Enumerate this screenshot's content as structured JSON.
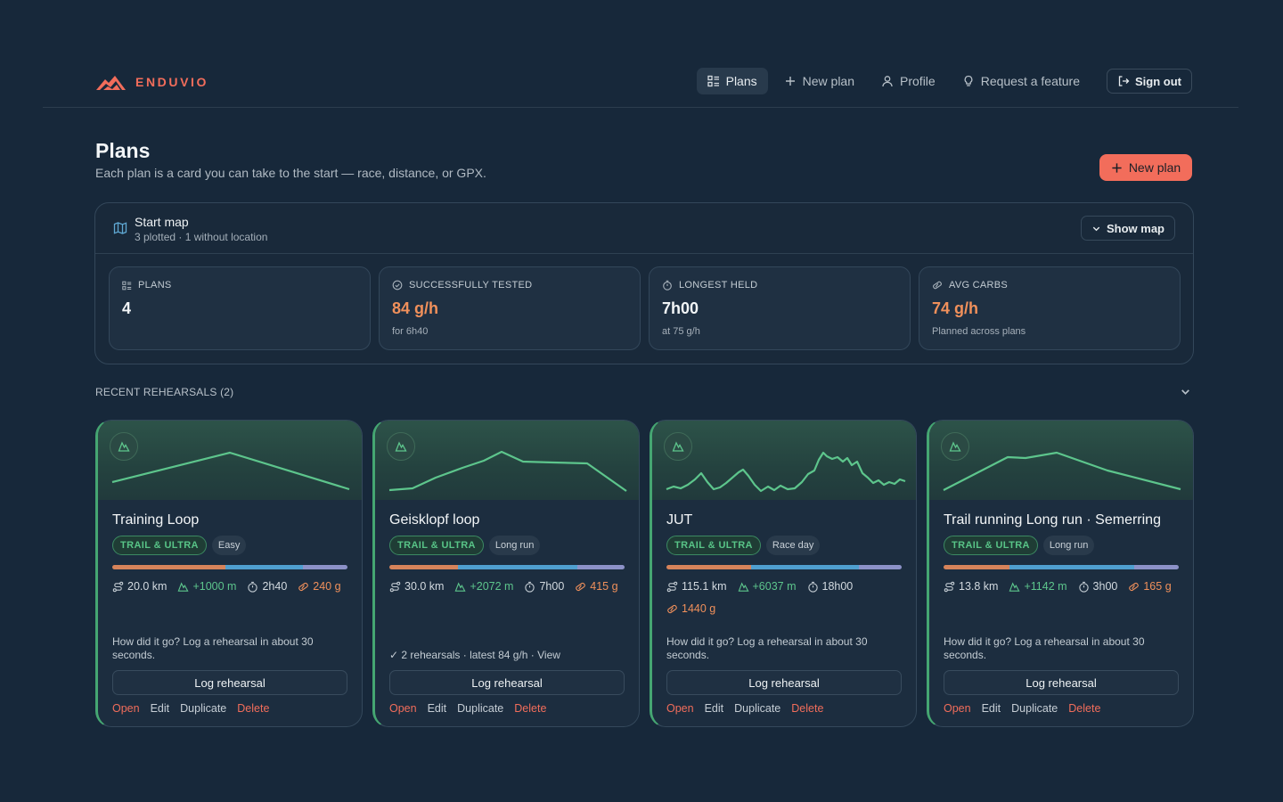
{
  "brand": {
    "name": "ENDUVIO"
  },
  "nav": {
    "plans": "Plans",
    "new_plan": "New plan",
    "profile": "Profile",
    "request_feature": "Request a feature",
    "sign_out": "Sign out"
  },
  "page": {
    "title": "Plans",
    "subtitle": "Each plan is a card you can take to the start — race, distance, or GPX.",
    "new_plan_button": "New plan"
  },
  "start_map": {
    "title": "Start map",
    "summary": "3 plotted · 1 without location",
    "toggle": "Show map"
  },
  "stats": [
    {
      "icon": "list-icon",
      "label": "PLANS",
      "value": "4",
      "note": ""
    },
    {
      "icon": "check-circle-icon",
      "label": "SUCCESSFULLY TESTED",
      "value": "84 g/h",
      "note": "for 6h40"
    },
    {
      "icon": "stopwatch-icon",
      "label": "LONGEST HELD",
      "value": "7h00",
      "note": "at 75 g/h"
    },
    {
      "icon": "energy-bar-icon",
      "label": "AVG CARBS",
      "value": "74 g/h",
      "note": "Planned across plans"
    }
  ],
  "recent": {
    "label": "RECENT REHEARSALS",
    "count": "(2)"
  },
  "colors": {
    "accent": "#f26d5b",
    "carb_orange": "#f0905b",
    "trail_green": "#45a672",
    "background": "#17283a"
  },
  "cards": [
    {
      "title": "Training Loop",
      "category": "TRAIL & ULTRA",
      "type": "Easy",
      "distance": "20.0 km",
      "elevation": "+1000 m",
      "duration": "2h40",
      "carbs": "240 g",
      "note": "How did it go? Log a rehearsal in about 30 seconds.",
      "log_button": "Log rehearsal",
      "actions": {
        "open": "Open",
        "edit": "Edit",
        "duplicate": "Duplicate",
        "delete": "Delete"
      }
    },
    {
      "title": "Geisklopf loop",
      "category": "TRAIL & ULTRA",
      "type": "Long run",
      "distance": "30.0 km",
      "elevation": "+2072 m",
      "duration": "7h00",
      "carbs": "415 g",
      "note": "✓ 2 rehearsals · latest 84 g/h · View",
      "log_button": "Log rehearsal",
      "actions": {
        "open": "Open",
        "edit": "Edit",
        "duplicate": "Duplicate",
        "delete": "Delete"
      }
    },
    {
      "title": "JUT",
      "category": "TRAIL & ULTRA",
      "type": "Race day",
      "distance": "115.1 km",
      "elevation": "+6037 m",
      "duration": "18h00",
      "carbs": "1440 g",
      "note": "How did it go? Log a rehearsal in about 30 seconds.",
      "log_button": "Log rehearsal",
      "actions": {
        "open": "Open",
        "edit": "Edit",
        "duplicate": "Duplicate",
        "delete": "Delete"
      }
    },
    {
      "title": "Trail running Long run · Semerring",
      "category": "TRAIL & ULTRA",
      "type": "Long run",
      "distance": "13.8 km",
      "elevation": "+1142 m",
      "duration": "3h00",
      "carbs": "165 g",
      "note": "How did it go? Log a rehearsal in about 30 seconds.",
      "log_button": "Log rehearsal",
      "actions": {
        "open": "Open",
        "edit": "Edit",
        "duplicate": "Duplicate",
        "delete": "Delete"
      }
    }
  ]
}
